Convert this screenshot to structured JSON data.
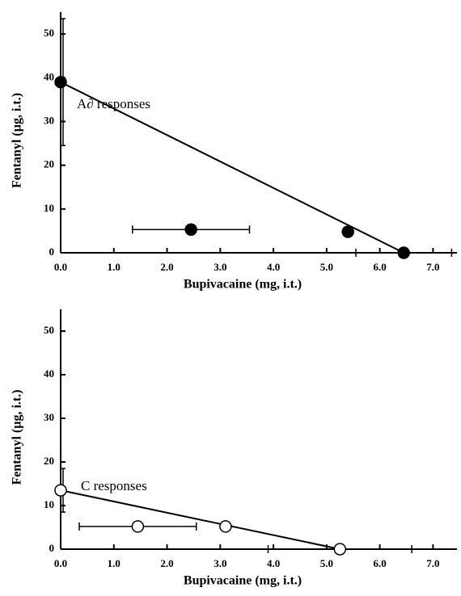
{
  "chart_data": [
    {
      "type": "scatter",
      "annotation": "A∂ responses",
      "x_label": "Bupivacaine (mg, i.t.)",
      "y_label": "Fentanyl (µg, i.t.)",
      "xlim": [
        0,
        7.45
      ],
      "ylim": [
        0,
        55
      ],
      "xticks": [
        {
          "value": 0,
          "label": "0.0"
        },
        {
          "value": 1,
          "label": "1.0"
        },
        {
          "value": 2,
          "label": "2.0"
        },
        {
          "value": 3,
          "label": "3.0"
        },
        {
          "value": 4,
          "label": "4.0"
        },
        {
          "value": 5,
          "label": "5.0"
        },
        {
          "value": 6,
          "label": "6.0"
        },
        {
          "value": 7,
          "label": "7.0"
        }
      ],
      "yticks": [
        0,
        10,
        20,
        30,
        40,
        50
      ],
      "isobole": true,
      "series": [
        {
          "color": "#000000",
          "x": [
            0,
            2.45,
            5.4,
            6.45
          ],
          "values": [
            39,
            5.3,
            4.8,
            0
          ],
          "x_error": [
            null,
            1.1,
            null,
            0.9
          ],
          "y_error": [
            14.5,
            null,
            null,
            null
          ]
        }
      ]
    },
    {
      "type": "scatter",
      "annotation": "C responses",
      "x_label": "Bupivacaine (mg, i.t.)",
      "y_label": "Fentanyl (µg, i.t.)",
      "xlim": [
        0,
        7.45
      ],
      "ylim": [
        0,
        55
      ],
      "xticks": [
        {
          "value": 0,
          "label": "0.0"
        },
        {
          "value": 1,
          "label": "1.0"
        },
        {
          "value": 2,
          "label": "2.0"
        },
        {
          "value": 3,
          "label": "3.0"
        },
        {
          "value": 4,
          "label": "4.0"
        },
        {
          "value": 5,
          "label": "5.0"
        },
        {
          "value": 6,
          "label": "6.0"
        },
        {
          "value": 7,
          "label": "7.0"
        }
      ],
      "yticks": [
        0,
        10,
        20,
        30,
        40,
        50
      ],
      "isobole": true,
      "series": [
        {
          "color": "#ffffff",
          "x": [
            0,
            1.45,
            3.1,
            5.25
          ],
          "values": [
            13.5,
            5.2,
            5.2,
            0
          ],
          "x_error": [
            null,
            1.1,
            null,
            1.35
          ],
          "y_error": [
            5,
            null,
            null,
            null
          ]
        }
      ]
    }
  ]
}
